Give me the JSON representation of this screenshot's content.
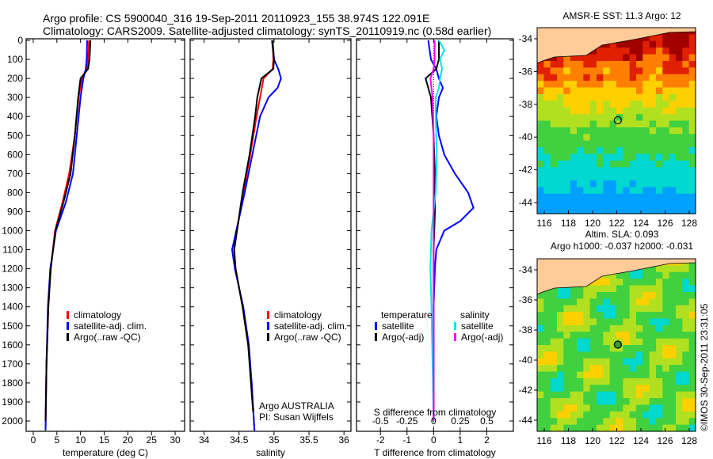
{
  "title": {
    "line1": "Argo profile: CS 5900040_316 19-Sep-2011 20110923_155 38.974S 122.091E",
    "line2": "Climatology: CARS2009. Satellite-adjusted climatology: synTS_20110919.nc (0.58d earlier)"
  },
  "colors": {
    "climatology": "#ff0000",
    "satellite": "#0000ff",
    "argo": "#000000",
    "s_satellite": "#00e5ee",
    "s_argo": "#ff00ff"
  },
  "chart_data": [
    {
      "type": "line",
      "name": "temperature",
      "xlabel": "temperature (deg C)",
      "ylabel": "depth",
      "xlim": [
        -1.5,
        32
      ],
      "ylim": [
        2050,
        0
      ],
      "xticks": [
        0,
        5,
        10,
        15,
        20,
        25,
        30
      ],
      "yticks": [
        0,
        100,
        200,
        300,
        400,
        500,
        600,
        700,
        800,
        900,
        1000,
        1100,
        1200,
        1300,
        1400,
        1500,
        1600,
        1700,
        1800,
        1900,
        2000
      ],
      "legend": [
        "climatology",
        "satellite-adj. clim.",
        "Argo(..raw -QC)"
      ],
      "series": [
        {
          "name": "climatology",
          "depth": [
            0,
            100,
            150,
            200,
            300,
            500,
            700,
            850,
            1000,
            1200,
            1400,
            1700,
            2050
          ],
          "values": [
            11.8,
            11.6,
            11.3,
            10.3,
            9.6,
            8.8,
            7.6,
            6.2,
            4.6,
            3.7,
            3.2,
            2.8,
            2.6
          ]
        },
        {
          "name": "satellite-adj. clim.",
          "depth": [
            0,
            100,
            150,
            200,
            300,
            500,
            700,
            850,
            1000,
            1200,
            1400,
            1700,
            2050
          ],
          "values": [
            11.4,
            11.3,
            11.1,
            10.6,
            10.0,
            9.2,
            8.4,
            6.9,
            4.8,
            3.6,
            3.1,
            2.8,
            2.6
          ]
        },
        {
          "name": "Argo(..raw -QC)",
          "depth": [
            0,
            100,
            150,
            200,
            300,
            500,
            700,
            850,
            1000,
            1200,
            1400,
            1700,
            2000
          ],
          "values": [
            12.1,
            11.9,
            11.6,
            10.0,
            9.5,
            8.8,
            7.9,
            6.4,
            4.7,
            3.7,
            3.2,
            2.8,
            2.6
          ]
        }
      ],
      "annotation": ""
    },
    {
      "type": "line",
      "name": "salinity",
      "xlabel": "salinity",
      "ylabel": "depth",
      "xlim": [
        33.8,
        36.1
      ],
      "ylim": [
        2050,
        0
      ],
      "xticks": [
        34,
        34.5,
        35,
        35.5,
        36
      ],
      "legend": [
        "climatology",
        "satellite-adj. clim.",
        "Argo(..raw -QC)"
      ],
      "series": [
        {
          "name": "climatology",
          "depth": [
            0,
            100,
            150,
            200,
            300,
            400,
            600,
            800,
            1000,
            1100,
            1200,
            1400,
            1600,
            1800,
            2050
          ],
          "values": [
            34.98,
            34.99,
            34.98,
            34.85,
            34.8,
            34.75,
            34.66,
            34.56,
            34.47,
            34.43,
            34.45,
            34.55,
            34.63,
            34.68,
            34.72
          ]
        },
        {
          "name": "satellite-adj. clim.",
          "depth": [
            0,
            100,
            150,
            200,
            250,
            300,
            400,
            600,
            800,
            1000,
            1100,
            1200,
            1400,
            1600,
            1800,
            2050
          ],
          "values": [
            34.98,
            35.0,
            35.06,
            35.1,
            35.05,
            34.92,
            34.8,
            34.69,
            34.58,
            34.46,
            34.4,
            34.44,
            34.56,
            34.64,
            34.68,
            34.72
          ]
        },
        {
          "name": "Argo(..raw -QC)",
          "depth": [
            0,
            100,
            150,
            200,
            300,
            400,
            600,
            800,
            1000,
            1100,
            1200,
            1400,
            1600,
            1800,
            1950
          ],
          "values": [
            34.97,
            35.0,
            34.99,
            34.82,
            34.76,
            34.73,
            34.65,
            34.55,
            34.47,
            34.43,
            34.45,
            34.55,
            34.63,
            34.67,
            34.7
          ]
        }
      ],
      "annotation": [
        "Argo AUSTRALIA",
        "PI: Susan Wijffels"
      ]
    },
    {
      "type": "line",
      "name": "differences",
      "xlabel": "T difference from climatology",
      "x2label": "S difference from climatology",
      "xlim": [
        -2.9,
        3.0
      ],
      "ylim": [
        2050,
        0
      ],
      "xticks": [
        -2,
        -1,
        0,
        1,
        2
      ],
      "x2ticks": [
        "-0.5",
        "-0.25",
        "0",
        "0.25",
        "0.5"
      ],
      "legend": {
        "temperature_title": "temperature",
        "salinity_title": "salinity",
        "items": [
          "satellite",
          "Argo(-adj)",
          "satellite",
          "Argo(-adj)"
        ]
      },
      "series": [
        {
          "name": "T satellite",
          "depth": [
            0,
            50,
            100,
            150,
            200,
            250,
            300,
            400,
            500,
            600,
            700,
            800,
            880,
            950,
            1000,
            1100,
            1200,
            1400,
            1700,
            2000
          ],
          "values": [
            -0.2,
            -0.15,
            -0.1,
            0.1,
            0.2,
            0.35,
            0.2,
            0.1,
            0.2,
            0.4,
            0.8,
            1.3,
            1.5,
            1.0,
            0.4,
            0.1,
            0.05,
            0.0,
            0.0,
            0.0
          ]
        },
        {
          "name": "T Argo(-adj)",
          "depth": [
            0,
            100,
            150,
            200,
            300,
            500,
            700,
            900,
            1100,
            1400,
            1700,
            2000
          ],
          "values": [
            0.2,
            0.2,
            0.1,
            -0.3,
            -0.1,
            0.0,
            0.05,
            0.05,
            0.0,
            0.0,
            0.0,
            0.0
          ]
        },
        {
          "name": "S satellite",
          "depth": [
            0,
            50,
            100,
            150,
            200,
            250,
            300,
            400,
            600,
            800,
            1000,
            1200,
            1400,
            1700,
            2000
          ],
          "values": [
            0.05,
            0.1,
            0.06,
            0.08,
            0.06,
            0.05,
            0.02,
            0.02,
            0.03,
            0.02,
            -0.02,
            -0.03,
            -0.02,
            -0.01,
            0.0
          ]
        },
        {
          "name": "S Argo(-adj)",
          "depth": [
            0,
            100,
            150,
            200,
            300,
            500,
            700,
            900,
            1100,
            1400,
            1700,
            2000
          ],
          "values": [
            0.01,
            0.01,
            0.0,
            -0.03,
            -0.01,
            0.0,
            0.0,
            0.0,
            0.0,
            0.0,
            0.0,
            0.0
          ]
        }
      ]
    },
    {
      "type": "heatmap",
      "name": "sst-map",
      "title": "AMSR-E SST: 11.3 Argo: 12",
      "xticks": [
        116,
        118,
        120,
        122,
        124,
        126,
        128
      ],
      "yticks": [
        -34,
        -36,
        -38,
        -40,
        -42,
        -44
      ],
      "marker": {
        "lon": 122.091,
        "lat": -38.974
      }
    },
    {
      "type": "heatmap",
      "name": "sla-map",
      "title": "Altim. SLA: 0.093",
      "subtitle": "Argo h1000: -0.037 h2000: -0.031",
      "xticks": [
        116,
        118,
        120,
        122,
        124,
        126,
        128
      ],
      "yticks": [
        -34,
        -36,
        -38,
        -40,
        -42,
        -44
      ],
      "marker": {
        "lon": 122.091,
        "lat": -38.974
      }
    }
  ],
  "credit": "©IMOS 30-Sep-2011 23:31:05"
}
